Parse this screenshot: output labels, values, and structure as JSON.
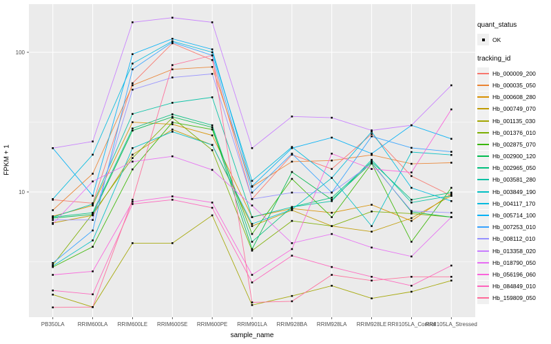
{
  "legend": {
    "quant_status_title": "quant_status",
    "ok_label": "OK",
    "tracking_id_title": "tracking_id"
  },
  "style": {
    "panel_bg": "#EBEBEB",
    "grid_color": "#FFFFFF",
    "tick_color": "#333333",
    "tick_label_color": "#4D4D4D",
    "point_color": "#000000",
    "legend_key_bg": "#F0F0F0"
  },
  "chart_data": {
    "type": "line",
    "title": "",
    "xlabel": "sample_name",
    "ylabel": "FPKM + 1",
    "yscale": "log10",
    "ylim": [
      1.35,
      230
    ],
    "y_major_ticks": [
      10,
      100
    ],
    "y_minor_ticks": [
      3.162,
      31.62
    ],
    "grid": true,
    "legend_position": "right",
    "point_shape": "filled-square",
    "categories": [
      "PB350LA",
      "RRIM600LA",
      "RRIM600LE",
      "RRIM600SE",
      "RRIM600PE",
      "RRIM901LA",
      "RRIM928BA",
      "RRIM928LA",
      "RRIM928LE",
      "RRII105LA_Control",
      "RRII105LA_Stressed"
    ],
    "series": [
      {
        "name": "Hb_000009_200",
        "color": "#F8766D",
        "values": [
          8.8,
          8.3,
          60,
          116,
          88,
          8.9,
          18.5,
          14.6,
          26,
          13,
          9.4
        ]
      },
      {
        "name": "Hb_000035_050",
        "color": "#EA8331",
        "values": [
          7.4,
          13.5,
          58,
          75.5,
          78.5,
          10.9,
          16.5,
          16.8,
          18.4,
          15.9,
          16.2
        ]
      },
      {
        "name": "Hb_000608_280",
        "color": "#D89000",
        "values": [
          6.7,
          8.0,
          31.6,
          30.5,
          25.4,
          6.6,
          7.6,
          7.1,
          8.1,
          6.2,
          9.7
        ]
      },
      {
        "name": "Hb_000749_070",
        "color": "#C09B00",
        "values": [
          6.0,
          6.8,
          18.5,
          28,
          21.7,
          5.7,
          7.4,
          5.7,
          5.2,
          6.5,
          9.4
        ]
      },
      {
        "name": "Hb_001135_030",
        "color": "#A3A500",
        "values": [
          1.84,
          1.5,
          4.3,
          4.3,
          6.8,
          1.55,
          1.8,
          2.13,
          1.73,
          1.93,
          2.32
        ]
      },
      {
        "name": "Hb_001376_010",
        "color": "#7CAE00",
        "values": [
          3.0,
          7.0,
          17.5,
          34,
          19.9,
          3.8,
          6.2,
          5.7,
          7.25,
          7.0,
          6.6
        ]
      },
      {
        "name": "Hb_002875_070",
        "color": "#39B600",
        "values": [
          2.9,
          4.05,
          14.5,
          31.5,
          28,
          5.0,
          12.4,
          6.6,
          16,
          4.4,
          10.7
        ]
      },
      {
        "name": "Hb_002900_120",
        "color": "#00BB4E",
        "values": [
          6.5,
          6.9,
          27.5,
          34.5,
          29,
          3.9,
          13.9,
          8.8,
          16.2,
          7.2,
          6.6
        ]
      },
      {
        "name": "Hb_002965_050",
        "color": "#00BF7D",
        "values": [
          6.6,
          7.1,
          28.5,
          36,
          30,
          4.4,
          7.8,
          9.1,
          16.5,
          8.8,
          9.9
        ]
      },
      {
        "name": "Hb_003581_280",
        "color": "#00C1A3",
        "values": [
          6.6,
          8.2,
          36.2,
          43.5,
          47.6,
          6.6,
          7.8,
          8.6,
          17,
          8.4,
          9.4
        ]
      },
      {
        "name": "Hb_003849_190",
        "color": "#00BFC4",
        "values": [
          2.95,
          4.5,
          20.6,
          27,
          21.7,
          5.9,
          7.5,
          12.6,
          5.7,
          19.3,
          18.4
        ]
      },
      {
        "name": "Hb_004117_170",
        "color": "#00BADE",
        "values": [
          8.9,
          18.5,
          83,
          120,
          100,
          12.0,
          21,
          12.6,
          27,
          10.7,
          8.6
        ]
      },
      {
        "name": "Hb_005714_100",
        "color": "#00B0F6",
        "values": [
          20.6,
          9.4,
          97,
          125,
          105,
          11.0,
          20.6,
          24.5,
          18.8,
          30,
          24
        ]
      },
      {
        "name": "Hb_007253_010",
        "color": "#35A2FF",
        "values": [
          3.1,
          5.3,
          75.5,
          118,
          95,
          9.9,
          18.8,
          9.9,
          25,
          20.7,
          19.4
        ]
      },
      {
        "name": "Hb_008112_010",
        "color": "#9590FF",
        "values": [
          6.3,
          6.3,
          54,
          66,
          70,
          8.9,
          9.9,
          9.9,
          16,
          7.3,
          7.1
        ]
      },
      {
        "name": "Hb_013358_020",
        "color": "#C77CFF",
        "values": [
          20.6,
          23,
          164,
          177,
          164,
          20.6,
          34.7,
          34,
          27.6,
          30,
          58
        ]
      },
      {
        "name": "Hb_018790_050",
        "color": "#E76BF3",
        "values": [
          5.9,
          11.9,
          16.5,
          18,
          14.4,
          8.0,
          4.3,
          5.0,
          4.0,
          3.45,
          6.6
        ]
      },
      {
        "name": "Hb_056196_060",
        "color": "#FA62DB",
        "values": [
          2.55,
          2.7,
          8.5,
          9.3,
          8.4,
          2.55,
          3.9,
          18.8,
          14.6,
          13.8,
          39
        ]
      },
      {
        "name": "Hb_084849_010",
        "color": "#FF62BC",
        "values": [
          1.97,
          1.85,
          8.2,
          8.8,
          7.7,
          2.25,
          3.5,
          2.9,
          2.47,
          2.13,
          2.97
        ]
      },
      {
        "name": "Hb_159809_050",
        "color": "#FF6A98",
        "values": [
          1.49,
          1.5,
          8.8,
          81,
          95,
          1.62,
          1.65,
          2.55,
          2.32,
          2.47,
          2.47
        ]
      }
    ]
  }
}
